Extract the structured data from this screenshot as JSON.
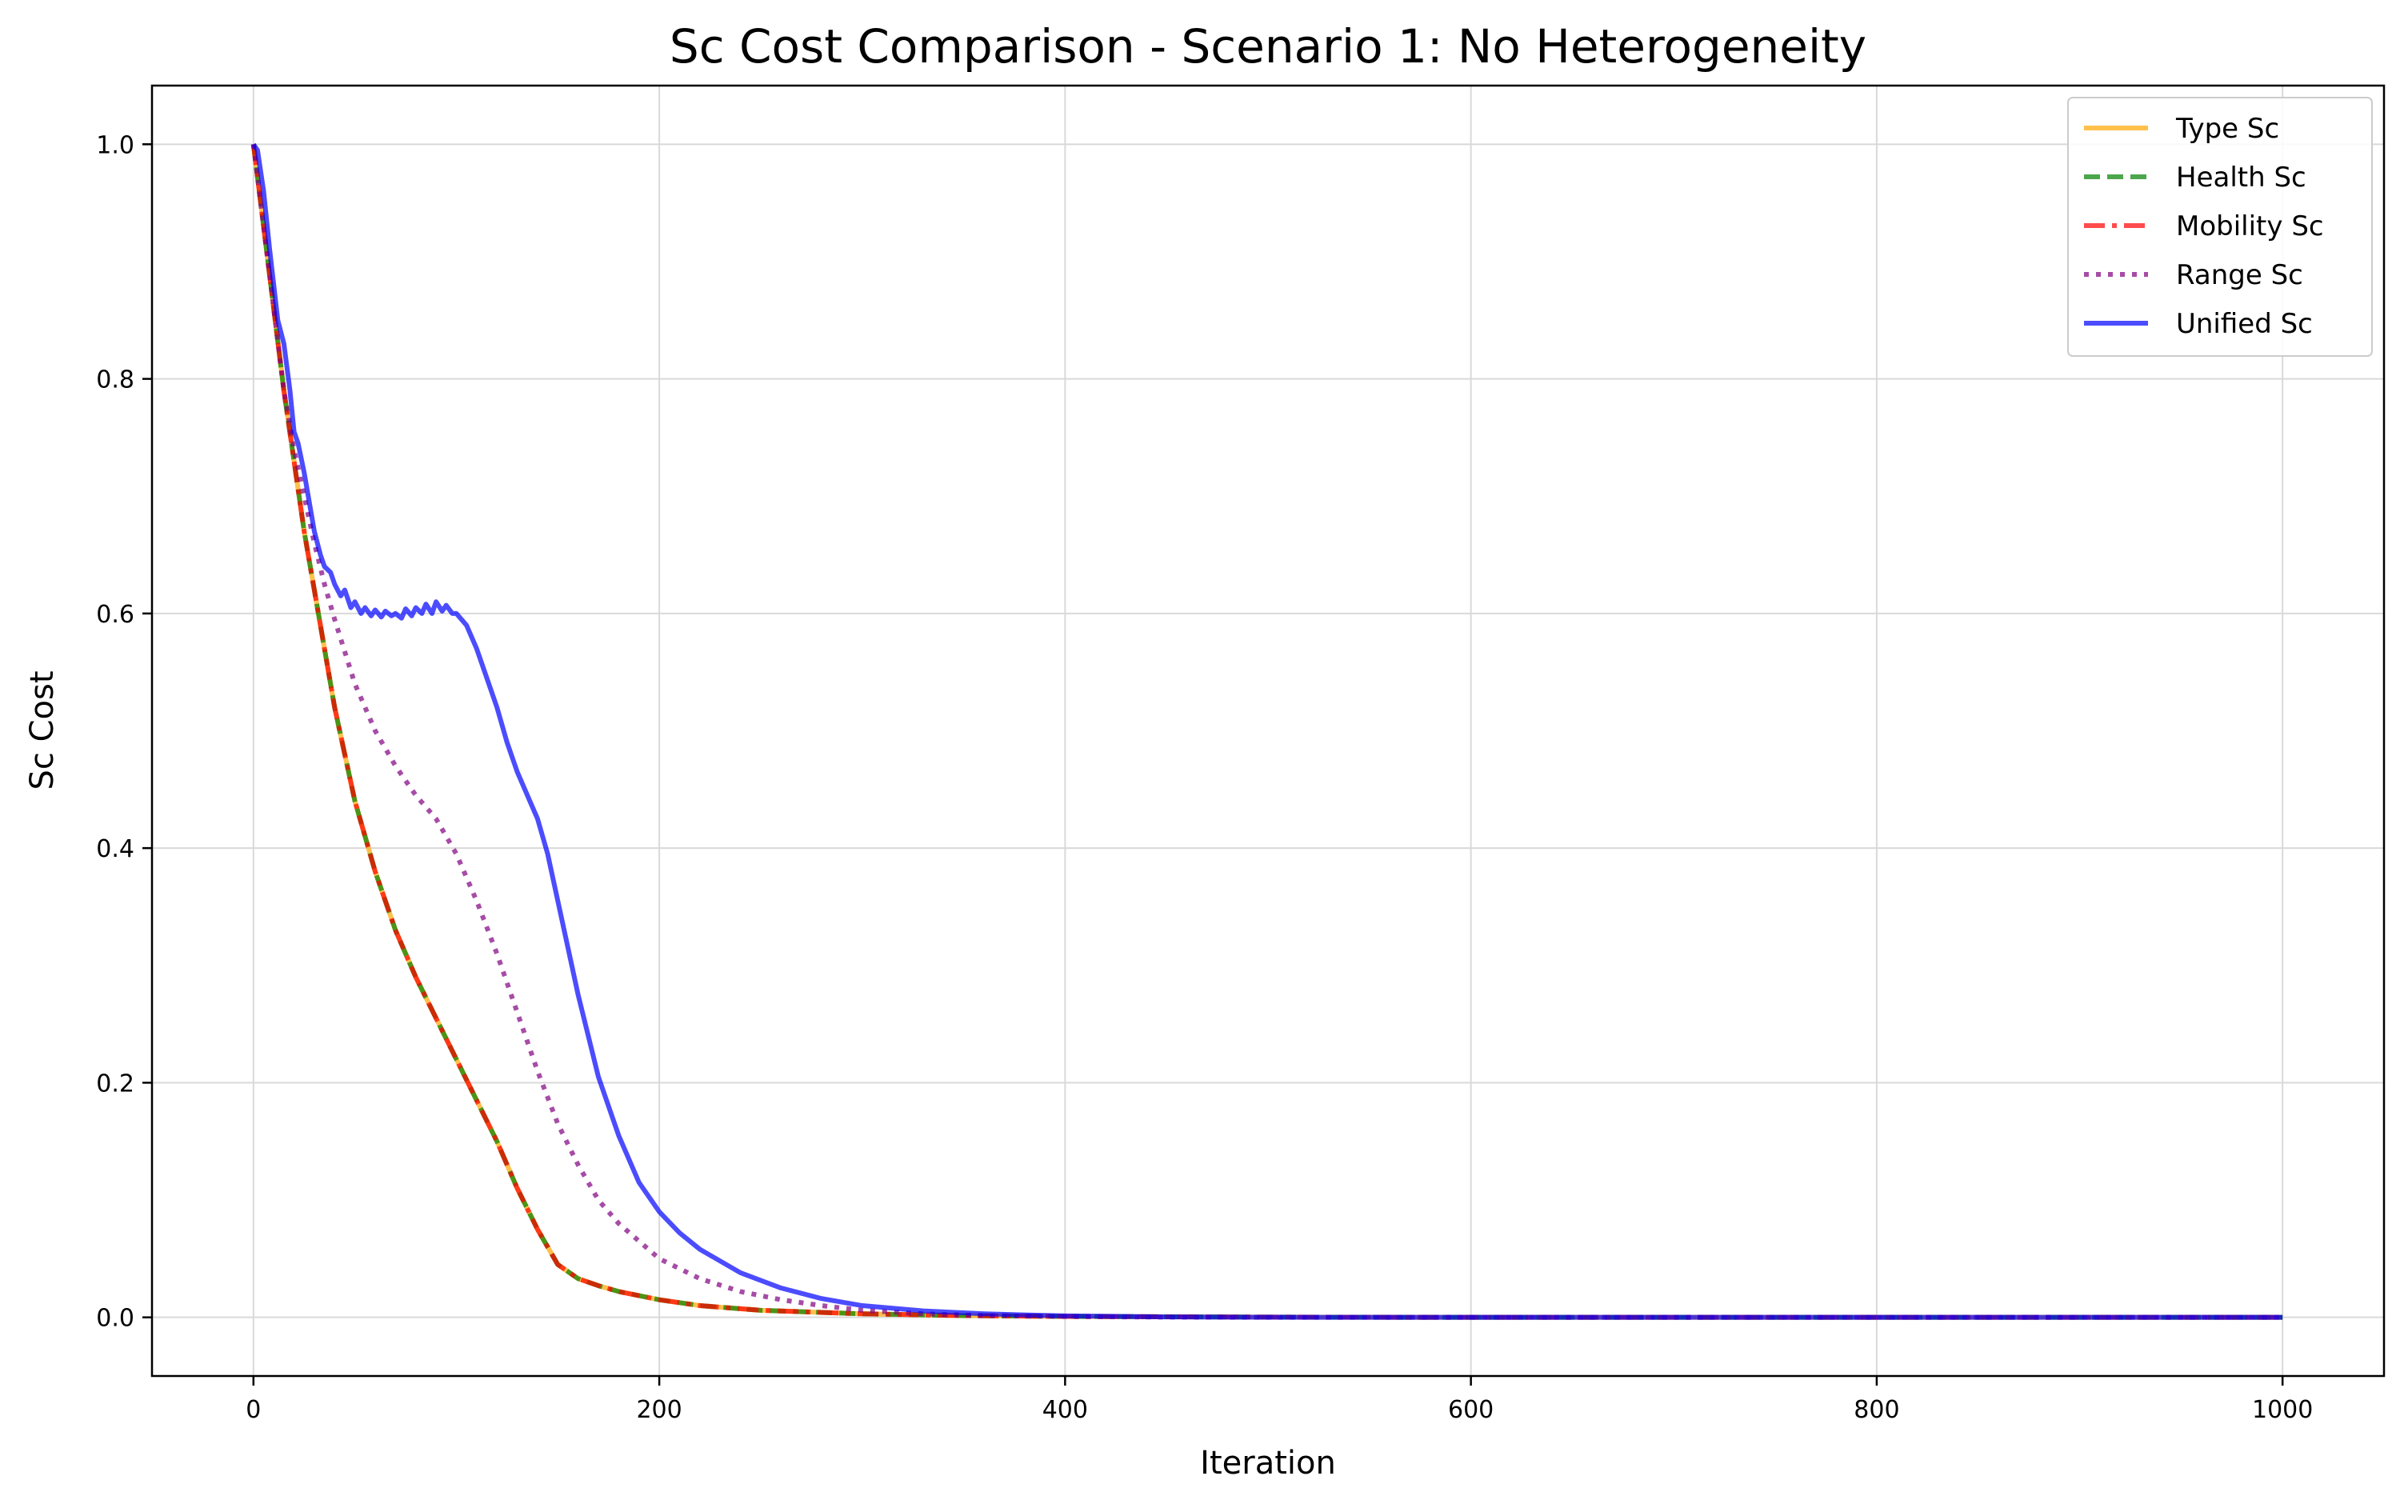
{
  "chart_data": {
    "type": "line",
    "title": "Sc Cost Comparison - Scenario 1: No Heterogeneity",
    "xlabel": "Iteration",
    "ylabel": "Sc Cost",
    "xlim": [
      -50,
      1050
    ],
    "ylim": [
      -0.05,
      1.05
    ],
    "xticks": [
      0,
      200,
      400,
      600,
      800,
      1000
    ],
    "yticks": [
      0.0,
      0.2,
      0.4,
      0.6,
      0.8,
      1.0
    ],
    "xtick_labels": [
      "0",
      "200",
      "400",
      "600",
      "800",
      "1000"
    ],
    "ytick_labels": [
      "0.0",
      "0.2",
      "0.4",
      "0.6",
      "0.8",
      "1.0"
    ],
    "grid": true,
    "legend_position": "top-right",
    "series": [
      {
        "name": "Type Sc",
        "color": "#FFA500",
        "style": "solid",
        "x": [
          0,
          5,
          10,
          15,
          20,
          25,
          30,
          35,
          40,
          45,
          50,
          60,
          70,
          80,
          90,
          100,
          110,
          120,
          130,
          140,
          150,
          160,
          170,
          180,
          200,
          220,
          250,
          300,
          350,
          400,
          500,
          600,
          700,
          800,
          900,
          1000
        ],
        "y": [
          1.0,
          0.93,
          0.86,
          0.79,
          0.73,
          0.67,
          0.62,
          0.57,
          0.52,
          0.48,
          0.44,
          0.38,
          0.33,
          0.29,
          0.255,
          0.22,
          0.185,
          0.15,
          0.11,
          0.075,
          0.045,
          0.033,
          0.027,
          0.022,
          0.015,
          0.01,
          0.006,
          0.003,
          0.0015,
          0.0008,
          0.0002,
          0.0,
          0.0,
          0.0,
          0.0,
          0.0
        ]
      },
      {
        "name": "Health Sc",
        "color": "#008000",
        "style": "dashed",
        "x": [
          0,
          5,
          10,
          15,
          20,
          25,
          30,
          35,
          40,
          45,
          50,
          60,
          70,
          80,
          90,
          100,
          110,
          120,
          130,
          140,
          150,
          160,
          170,
          180,
          200,
          220,
          250,
          300,
          350,
          400,
          500,
          600,
          700,
          800,
          900,
          1000
        ],
        "y": [
          1.0,
          0.93,
          0.86,
          0.79,
          0.73,
          0.67,
          0.62,
          0.57,
          0.52,
          0.48,
          0.44,
          0.38,
          0.33,
          0.29,
          0.255,
          0.22,
          0.185,
          0.15,
          0.11,
          0.075,
          0.045,
          0.033,
          0.027,
          0.022,
          0.015,
          0.01,
          0.006,
          0.003,
          0.0015,
          0.0008,
          0.0002,
          0.0,
          0.0,
          0.0,
          0.0,
          0.0
        ]
      },
      {
        "name": "Mobility Sc",
        "color": "#FF0000",
        "style": "dashdot",
        "x": [
          0,
          5,
          10,
          15,
          20,
          25,
          30,
          35,
          40,
          45,
          50,
          60,
          70,
          80,
          90,
          100,
          110,
          120,
          130,
          140,
          150,
          160,
          170,
          180,
          200,
          220,
          250,
          300,
          350,
          400,
          500,
          600,
          700,
          800,
          900,
          1000
        ],
        "y": [
          1.0,
          0.93,
          0.86,
          0.79,
          0.73,
          0.67,
          0.62,
          0.57,
          0.52,
          0.48,
          0.44,
          0.38,
          0.33,
          0.29,
          0.255,
          0.22,
          0.185,
          0.15,
          0.11,
          0.075,
          0.045,
          0.033,
          0.027,
          0.022,
          0.015,
          0.01,
          0.006,
          0.003,
          0.0015,
          0.0008,
          0.0002,
          0.0,
          0.0,
          0.0,
          0.0,
          0.0
        ]
      },
      {
        "name": "Range Sc",
        "color": "#800080",
        "style": "dotted",
        "x": [
          0,
          5,
          10,
          15,
          20,
          25,
          30,
          35,
          40,
          50,
          60,
          70,
          80,
          90,
          100,
          110,
          120,
          130,
          140,
          150,
          160,
          170,
          180,
          190,
          200,
          220,
          240,
          260,
          280,
          300,
          330,
          360,
          400,
          450,
          500,
          600,
          700,
          800,
          900,
          1000
        ],
        "y": [
          1.0,
          0.93,
          0.86,
          0.79,
          0.74,
          0.7,
          0.66,
          0.625,
          0.595,
          0.54,
          0.5,
          0.47,
          0.445,
          0.425,
          0.395,
          0.355,
          0.31,
          0.26,
          0.21,
          0.165,
          0.13,
          0.1,
          0.08,
          0.065,
          0.05,
          0.033,
          0.022,
          0.015,
          0.01,
          0.006,
          0.003,
          0.0015,
          0.0007,
          0.0002,
          0.0,
          0.0,
          0.0,
          0.0,
          0.0,
          0.0
        ]
      },
      {
        "name": "Unified Sc",
        "color": "#0000FF",
        "style": "solid",
        "x": [
          0,
          2,
          5,
          8,
          10,
          12,
          15,
          18,
          20,
          22,
          25,
          28,
          30,
          33,
          35,
          38,
          40,
          43,
          45,
          48,
          50,
          53,
          55,
          58,
          60,
          63,
          65,
          68,
          70,
          73,
          75,
          78,
          80,
          83,
          85,
          88,
          90,
          93,
          95,
          98,
          100,
          105,
          110,
          115,
          120,
          125,
          130,
          135,
          140,
          145,
          150,
          155,
          160,
          170,
          180,
          190,
          200,
          210,
          220,
          240,
          260,
          280,
          300,
          330,
          360,
          400,
          450,
          500,
          600,
          700,
          800,
          900,
          1000
        ],
        "y": [
          1.0,
          0.995,
          0.96,
          0.91,
          0.88,
          0.85,
          0.83,
          0.79,
          0.755,
          0.745,
          0.72,
          0.69,
          0.67,
          0.65,
          0.64,
          0.635,
          0.625,
          0.615,
          0.62,
          0.605,
          0.61,
          0.6,
          0.605,
          0.598,
          0.603,
          0.597,
          0.602,
          0.598,
          0.6,
          0.596,
          0.604,
          0.598,
          0.605,
          0.6,
          0.608,
          0.6,
          0.61,
          0.602,
          0.607,
          0.6,
          0.6,
          0.59,
          0.57,
          0.545,
          0.52,
          0.49,
          0.465,
          0.445,
          0.425,
          0.395,
          0.355,
          0.315,
          0.275,
          0.205,
          0.155,
          0.115,
          0.09,
          0.072,
          0.058,
          0.038,
          0.025,
          0.016,
          0.01,
          0.0055,
          0.003,
          0.0012,
          0.0004,
          0.0001,
          0.0,
          0.0,
          0.0,
          0.0,
          0.0
        ]
      }
    ]
  }
}
